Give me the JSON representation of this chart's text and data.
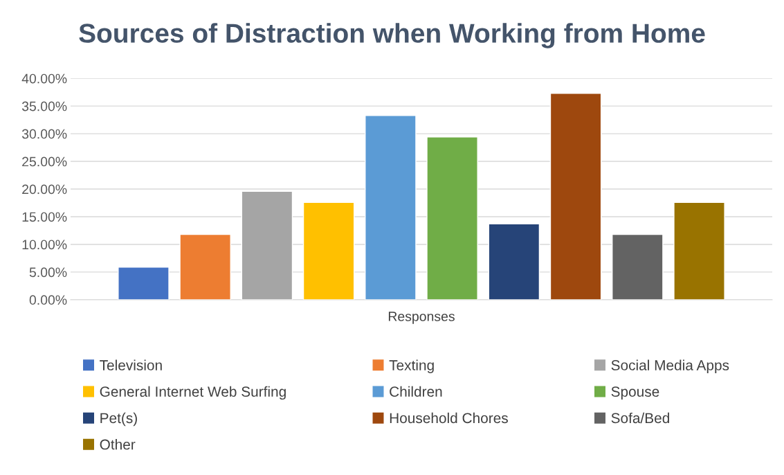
{
  "chart_data": {
    "type": "bar",
    "title": "Sources of Distraction when Working from Home",
    "categories": [
      "Responses"
    ],
    "series": [
      {
        "name": "Television",
        "color": "#4472c4",
        "values": [
          5.9
        ]
      },
      {
        "name": "Texting",
        "color": "#ed7d31",
        "values": [
          11.8
        ]
      },
      {
        "name": "Social Media Apps",
        "color": "#a5a5a5",
        "values": [
          19.6
        ]
      },
      {
        "name": "General Internet Web Surfing",
        "color": "#ffc000",
        "values": [
          17.6
        ]
      },
      {
        "name": "Children",
        "color": "#5b9bd5",
        "values": [
          33.3
        ]
      },
      {
        "name": "Spouse",
        "color": "#70ad47",
        "values": [
          29.4
        ]
      },
      {
        "name": "Pet(s)",
        "color": "#264478",
        "values": [
          13.7
        ]
      },
      {
        "name": "Household Chores",
        "color": "#9e480e",
        "values": [
          37.3
        ]
      },
      {
        "name": "Sofa/Bed",
        "color": "#636363",
        "values": [
          11.8
        ]
      },
      {
        "name": "Other",
        "color": "#997300",
        "values": [
          17.6
        ]
      }
    ],
    "ylim": [
      0,
      40
    ],
    "yticks": [
      {
        "value": 0,
        "label": "0.00%"
      },
      {
        "value": 5,
        "label": "5.00%"
      },
      {
        "value": 10,
        "label": "10.00%"
      },
      {
        "value": 15,
        "label": "15.00%"
      },
      {
        "value": 20,
        "label": "20.00%"
      },
      {
        "value": 25,
        "label": "25.00%"
      },
      {
        "value": 30,
        "label": "30.00%"
      },
      {
        "value": 35,
        "label": "35.00%"
      },
      {
        "value": 40,
        "label": "40.00%"
      }
    ],
    "grid": "y",
    "legend": "bottom"
  }
}
